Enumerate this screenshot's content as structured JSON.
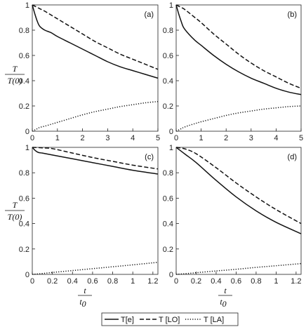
{
  "ylabel": {
    "num": "T",
    "den": "T(0)"
  },
  "xlabel": {
    "num": "t",
    "den": "t",
    "den_sub": "0"
  },
  "legend": [
    {
      "label": "T[e]",
      "dash": "solid"
    },
    {
      "label": "T [LO]",
      "dash": "dashed"
    },
    {
      "label": "T [LA]",
      "dash": "dotted"
    }
  ],
  "chart_data": [
    {
      "type": "line",
      "panel": "(a)",
      "xlim": [
        0,
        5
      ],
      "ylim": [
        0,
        1
      ],
      "xticks": [
        "0",
        "1",
        "2",
        "3",
        "4",
        "5"
      ],
      "yticks": [
        "0",
        "0.2",
        "0.4",
        "0.6",
        "0.8",
        "1"
      ],
      "x": [
        0,
        0.1,
        0.2,
        0.3,
        0.5,
        0.75,
        1,
        1.5,
        2,
        2.5,
        3,
        3.5,
        4,
        4.5,
        5
      ],
      "series": [
        {
          "name": "T[e]",
          "values": [
            1.0,
            0.93,
            0.87,
            0.83,
            0.8,
            0.78,
            0.75,
            0.7,
            0.65,
            0.6,
            0.55,
            0.51,
            0.48,
            0.45,
            0.42
          ]
        },
        {
          "name": "T [LO]",
          "values": [
            1.0,
            0.99,
            0.98,
            0.97,
            0.95,
            0.92,
            0.89,
            0.83,
            0.77,
            0.71,
            0.66,
            0.61,
            0.57,
            0.53,
            0.49
          ]
        },
        {
          "name": "T [LA]",
          "values": [
            0.0,
            0.01,
            0.02,
            0.03,
            0.04,
            0.055,
            0.07,
            0.1,
            0.13,
            0.155,
            0.175,
            0.195,
            0.21,
            0.225,
            0.235
          ]
        }
      ]
    },
    {
      "type": "line",
      "panel": "(b)",
      "xlim": [
        0,
        5
      ],
      "ylim": [
        0,
        1
      ],
      "xticks": [
        "0",
        "1",
        "2",
        "3",
        "4",
        "5"
      ],
      "yticks": [
        "0",
        "0.2",
        "0.4",
        "0.6",
        "0.8",
        "1"
      ],
      "x": [
        0,
        0.1,
        0.2,
        0.3,
        0.5,
        0.75,
        1,
        1.5,
        2,
        2.5,
        3,
        3.5,
        4,
        4.5,
        5
      ],
      "series": [
        {
          "name": "T[e]",
          "values": [
            1.0,
            0.93,
            0.87,
            0.82,
            0.77,
            0.72,
            0.68,
            0.6,
            0.53,
            0.47,
            0.42,
            0.38,
            0.34,
            0.31,
            0.29
          ]
        },
        {
          "name": "T [LO]",
          "values": [
            1.0,
            0.99,
            0.98,
            0.97,
            0.94,
            0.9,
            0.86,
            0.77,
            0.69,
            0.61,
            0.54,
            0.48,
            0.43,
            0.38,
            0.34
          ]
        },
        {
          "name": "T [LA]",
          "values": [
            0.0,
            0.01,
            0.02,
            0.03,
            0.045,
            0.06,
            0.075,
            0.1,
            0.125,
            0.145,
            0.16,
            0.175,
            0.185,
            0.195,
            0.2
          ]
        }
      ]
    },
    {
      "type": "line",
      "panel": "(c)",
      "xlim": [
        0,
        1.25
      ],
      "ylim": [
        0,
        1
      ],
      "xticks": [
        "0",
        "0.2",
        "0.4",
        "0.6",
        "0.8",
        "1",
        "1.2"
      ],
      "yticks": [
        "0",
        "0.2",
        "0.4",
        "0.6",
        "0.8",
        "1"
      ],
      "x": [
        0,
        0.03,
        0.06,
        0.1,
        0.2,
        0.4,
        0.6,
        0.8,
        1.0,
        1.25
      ],
      "series": [
        {
          "name": "T[e]",
          "values": [
            1.0,
            0.975,
            0.96,
            0.955,
            0.94,
            0.91,
            0.88,
            0.85,
            0.82,
            0.79
          ]
        },
        {
          "name": "T [LO]",
          "values": [
            1.0,
            0.999,
            0.998,
            0.996,
            0.99,
            0.955,
            0.92,
            0.89,
            0.86,
            0.83
          ]
        },
        {
          "name": "T [LA]",
          "values": [
            0.0,
            0.002,
            0.004,
            0.007,
            0.015,
            0.03,
            0.045,
            0.06,
            0.075,
            0.095
          ]
        }
      ]
    },
    {
      "type": "line",
      "panel": "(d)",
      "xlim": [
        0,
        1.25
      ],
      "ylim": [
        0,
        1
      ],
      "xticks": [
        "0",
        "0.2",
        "0.4",
        "0.6",
        "0.8",
        "1",
        "1.2"
      ],
      "yticks": [
        "0",
        "0.2",
        "0.4",
        "0.6",
        "0.8",
        "1"
      ],
      "x": [
        0,
        0.05,
        0.1,
        0.2,
        0.4,
        0.6,
        0.8,
        1.0,
        1.25
      ],
      "series": [
        {
          "name": "T[e]",
          "values": [
            1.0,
            0.97,
            0.94,
            0.88,
            0.74,
            0.61,
            0.5,
            0.41,
            0.32
          ]
        },
        {
          "name": "T [LO]",
          "values": [
            1.0,
            0.995,
            0.985,
            0.95,
            0.84,
            0.72,
            0.61,
            0.51,
            0.4
          ]
        },
        {
          "name": "T [LA]",
          "values": [
            0.0,
            0.003,
            0.006,
            0.013,
            0.027,
            0.04,
            0.055,
            0.068,
            0.085
          ]
        }
      ]
    }
  ]
}
